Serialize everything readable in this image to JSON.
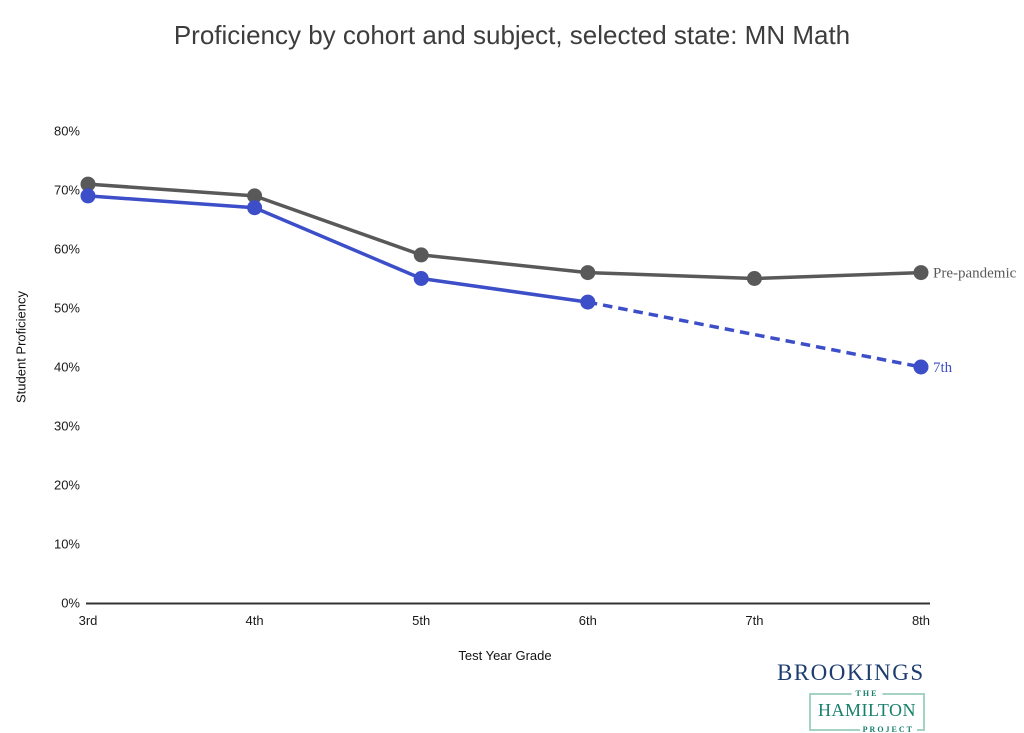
{
  "chart_data": {
    "type": "line",
    "title": "Proficiency by cohort and subject, selected state: MN Math",
    "categories": [
      "3rd",
      "4th",
      "5th",
      "6th",
      "7th",
      "8th"
    ],
    "xlabel": "Test Year Grade",
    "ylabel": "Student Proficiency",
    "ylim": [
      0,
      80
    ],
    "yticks": [
      0,
      10,
      20,
      30,
      40,
      50,
      60,
      70,
      80
    ],
    "ytick_labels": [
      "0%",
      "10%",
      "20%",
      "30%",
      "40%",
      "50%",
      "60%",
      "70%",
      "80%"
    ],
    "grid": false,
    "legend_position": "end-of-line-labels",
    "axis_color": "#333333",
    "tick_text_color": "#1a1a1a",
    "title_color": "#3d3d3d",
    "series": [
      {
        "name": "Pre-pandemic",
        "end_label": "Pre-pandemic",
        "color": "#595959",
        "values": [
          71,
          69,
          59,
          56,
          55,
          56
        ],
        "segments": [
          {
            "from": 0,
            "to": 5,
            "dashed": false
          }
        ],
        "marker_indices": [
          0,
          1,
          2,
          3,
          4,
          5
        ]
      },
      {
        "name": "7th",
        "end_label": "7th",
        "color": "#3d4ec9",
        "values": [
          69,
          67,
          55,
          51,
          null,
          40
        ],
        "segments": [
          {
            "from": 0,
            "to": 3,
            "dashed": false
          },
          {
            "from": 3,
            "to": 5,
            "dashed": true
          }
        ],
        "marker_indices": [
          0,
          1,
          2,
          3,
          5
        ]
      }
    ]
  },
  "footer": {
    "brookings_logo": "BROOKINGS",
    "brookings_color": "#1e3d6e",
    "hamilton_logo": {
      "line1": "THE",
      "line2": "HAMILTON",
      "line3": "PROJECT"
    },
    "hamilton_color": "#16806c",
    "hamilton_border_color": "#a5d3c2"
  }
}
